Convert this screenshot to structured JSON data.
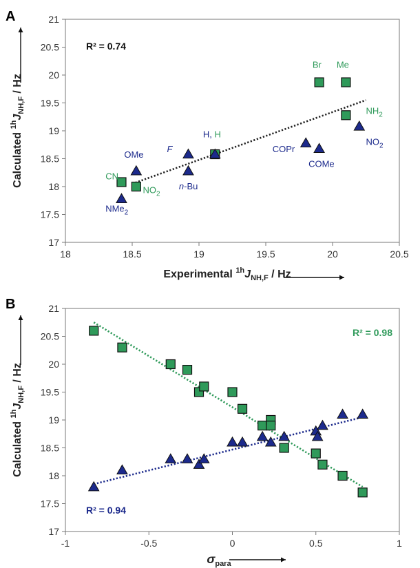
{
  "colors": {
    "green": "#2f9a5a",
    "blue": "#1c2a8c",
    "green_fill": "#2f9a5a",
    "blue_fill": "#1c2a8c"
  },
  "chart_data": [
    {
      "type": "scatter",
      "panel": "A",
      "title": "",
      "xlabel": {
        "prefix": "Experimental ",
        "sup": "1h",
        "main": "J",
        "sub": "NH,F",
        "suffix": " / Hz"
      },
      "ylabel": {
        "prefix": "Calculated ",
        "sup": "1h",
        "main": "J",
        "sub": "NH,F",
        "suffix": " / Hz"
      },
      "xlim": [
        18,
        20.5
      ],
      "ylim": [
        17,
        21
      ],
      "xticks": [
        18,
        18.5,
        19,
        19.5,
        20,
        20.5
      ],
      "xtick_labels": [
        "18",
        "18.5",
        "19",
        "19.5",
        "20",
        "20.5"
      ],
      "yticks": [
        17,
        17.5,
        18,
        18.5,
        19,
        19.5,
        20,
        20.5,
        21
      ],
      "ytick_labels": [
        "17",
        "17.5",
        "18",
        "18.5",
        "19",
        "19.5",
        "20",
        "20.5",
        "21"
      ],
      "r2_label": "R² = 0.74",
      "trendline": {
        "x": [
          18.5,
          20.25
        ],
        "y": [
          18.05,
          19.55
        ],
        "color": "#222222"
      },
      "series": [
        {
          "marker": "square",
          "color": "green",
          "points": [
            {
              "x": 18.42,
              "y": 18.08
            },
            {
              "x": 18.53,
              "y": 18.0
            },
            {
              "x": 19.12,
              "y": 18.58
            },
            {
              "x": 19.9,
              "y": 19.87
            },
            {
              "x": 20.1,
              "y": 19.87
            },
            {
              "x": 20.1,
              "y": 19.28
            }
          ]
        },
        {
          "marker": "triangle",
          "color": "blue",
          "points": [
            {
              "x": 18.42,
              "y": 17.78
            },
            {
              "x": 18.53,
              "y": 18.28
            },
            {
              "x": 18.92,
              "y": 18.58
            },
            {
              "x": 18.92,
              "y": 18.28
            },
            {
              "x": 19.12,
              "y": 18.58
            },
            {
              "x": 19.8,
              "y": 18.78
            },
            {
              "x": 19.9,
              "y": 18.68
            },
            {
              "x": 20.2,
              "y": 19.08
            }
          ]
        }
      ],
      "annotations": [
        {
          "text": "CN",
          "x": 18.3,
          "y": 18.13,
          "color": "green"
        },
        {
          "text": "NO",
          "sub": "2",
          "x": 18.58,
          "y": 17.88,
          "color": "green"
        },
        {
          "text": "OMe",
          "x": 18.44,
          "y": 18.52,
          "color": "blue"
        },
        {
          "text": "NMe",
          "sub": "2",
          "x": 18.3,
          "y": 17.55,
          "color": "blue"
        },
        {
          "text": "F",
          "x": 18.76,
          "y": 18.62,
          "color": "blue",
          "italic": true
        },
        {
          "text": "n",
          "after": "-Bu",
          "x": 18.85,
          "y": 17.95,
          "color": "blue",
          "italic_first": true
        },
        {
          "text": "H",
          "after": ", ",
          "tail": "H",
          "x": 19.03,
          "y": 18.88,
          "color": "blue",
          "tail_color": "green"
        },
        {
          "text": "COPr",
          "x": 19.55,
          "y": 18.62,
          "color": "blue"
        },
        {
          "text": "COMe",
          "x": 19.82,
          "y": 18.35,
          "color": "blue"
        },
        {
          "text": "Br",
          "x": 19.85,
          "y": 20.13,
          "color": "green"
        },
        {
          "text": "Me",
          "x": 20.03,
          "y": 20.13,
          "color": "green"
        },
        {
          "text": "NH",
          "sub": "2",
          "x": 20.25,
          "y": 19.3,
          "color": "green"
        },
        {
          "text": "NO",
          "sub": "2",
          "x": 20.25,
          "y": 18.75,
          "color": "blue"
        }
      ]
    },
    {
      "type": "scatter",
      "panel": "B",
      "title": "",
      "xlabel": {
        "prefix": "",
        "sup": "",
        "main": "σ",
        "sub": "para",
        "suffix": ""
      },
      "ylabel": {
        "prefix": "Calculated ",
        "sup": "1h",
        "main": "J",
        "sub": "NH,F",
        "suffix": " / Hz"
      },
      "xlim": [
        -1,
        1
      ],
      "ylim": [
        17,
        21
      ],
      "xticks": [
        -1,
        -0.5,
        0,
        0.5,
        1
      ],
      "xtick_labels": [
        "-1",
        "-0.5",
        "0",
        "0.5",
        "1"
      ],
      "yticks": [
        17,
        17.5,
        18,
        18.5,
        19,
        19.5,
        20,
        20.5,
        21
      ],
      "ytick_labels": [
        "17",
        "17.5",
        "18",
        "18.5",
        "19",
        "19.5",
        "20",
        "20.5",
        "21"
      ],
      "r2_green": "R² = 0.98",
      "r2_blue": "R² = 0.94",
      "trendlines": [
        {
          "x": [
            -0.83,
            0.78
          ],
          "y": [
            20.75,
            17.8
          ],
          "color": "green"
        },
        {
          "x": [
            -0.83,
            0.78
          ],
          "y": [
            17.85,
            19.05
          ],
          "color": "blue"
        }
      ],
      "series": [
        {
          "marker": "square",
          "color": "green",
          "points": [
            {
              "x": -0.83,
              "y": 20.6
            },
            {
              "x": -0.66,
              "y": 20.3
            },
            {
              "x": -0.37,
              "y": 20.0
            },
            {
              "x": -0.27,
              "y": 19.9
            },
            {
              "x": -0.2,
              "y": 19.5
            },
            {
              "x": -0.17,
              "y": 19.6
            },
            {
              "x": 0.0,
              "y": 19.5
            },
            {
              "x": 0.06,
              "y": 19.2
            },
            {
              "x": 0.18,
              "y": 18.9
            },
            {
              "x": 0.23,
              "y": 19.0
            },
            {
              "x": 0.23,
              "y": 18.9
            },
            {
              "x": 0.31,
              "y": 18.5
            },
            {
              "x": 0.5,
              "y": 18.4
            },
            {
              "x": 0.54,
              "y": 18.2
            },
            {
              "x": 0.66,
              "y": 18.0
            },
            {
              "x": 0.78,
              "y": 17.7
            }
          ]
        },
        {
          "marker": "triangle",
          "color": "blue",
          "points": [
            {
              "x": -0.83,
              "y": 17.8
            },
            {
              "x": -0.66,
              "y": 18.1
            },
            {
              "x": -0.37,
              "y": 18.3
            },
            {
              "x": -0.27,
              "y": 18.3
            },
            {
              "x": -0.2,
              "y": 18.2
            },
            {
              "x": -0.17,
              "y": 18.3
            },
            {
              "x": 0.0,
              "y": 18.6
            },
            {
              "x": 0.06,
              "y": 18.6
            },
            {
              "x": 0.18,
              "y": 18.7
            },
            {
              "x": 0.23,
              "y": 18.6
            },
            {
              "x": 0.31,
              "y": 18.7
            },
            {
              "x": 0.5,
              "y": 18.8
            },
            {
              "x": 0.51,
              "y": 18.7
            },
            {
              "x": 0.54,
              "y": 18.9
            },
            {
              "x": 0.66,
              "y": 19.1
            },
            {
              "x": 0.78,
              "y": 19.1
            }
          ]
        }
      ]
    }
  ]
}
